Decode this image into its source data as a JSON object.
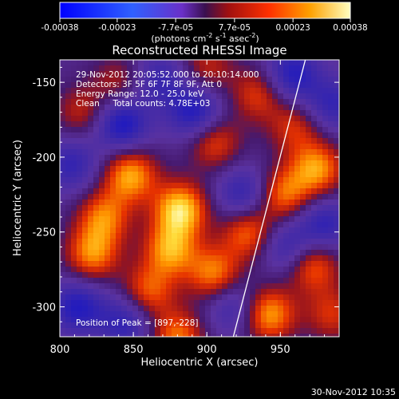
{
  "chart_data": {
    "type": "heatmap",
    "title": "Reconstructed RHESSI Image",
    "xlabel": "Heliocentric X (arcsec)",
    "ylabel": "Heliocentric Y (arcsec)",
    "xlim": [
      800,
      990
    ],
    "ylim": [
      -320,
      -135
    ],
    "x_ticks": [
      800,
      850,
      900,
      950
    ],
    "y_ticks": [
      -150,
      -200,
      -250,
      -300
    ],
    "colorbar": {
      "range": [
        -0.00038,
        0.00038
      ],
      "tick_labels": [
        "-0.00038",
        "-0.00023",
        "-7.7e-05",
        "7.7e-05",
        "0.00023",
        "0.00038"
      ],
      "tick_values": [
        -0.00038,
        -0.00023,
        -7.7e-05,
        7.7e-05,
        0.00023,
        0.00038
      ],
      "units_base": "(photons cm",
      "units_exp1": "-2",
      "units_mid": " s",
      "units_exp2": "-1",
      "units_mid2": " asec",
      "units_exp3": "-2",
      "units_end": ")"
    },
    "annotations": [
      "29-Nov-2012 20:05:52.000 to 20:10:14.000",
      "Detectors: 3F 5F 6F 7F 8F 9F, Att 0",
      "Energy Range: 12.0 - 25.0 keV",
      "Clean     Total counts: 4.78E+03"
    ],
    "peak_label": "Position of Peak = [897,-228]",
    "limb_line": {
      "x": [
        918,
        967
      ],
      "y": [
        -320,
        -135
      ]
    },
    "bright_regions": [
      {
        "x": 882,
        "y": -235,
        "rel": 1.0
      },
      {
        "x": 848,
        "y": -212,
        "rel": 0.85
      },
      {
        "x": 875,
        "y": -262,
        "rel": 0.8
      },
      {
        "x": 830,
        "y": -240,
        "rel": 0.7
      },
      {
        "x": 822,
        "y": -265,
        "rel": 0.75
      },
      {
        "x": 860,
        "y": -290,
        "rel": 0.65
      },
      {
        "x": 905,
        "y": -278,
        "rel": 0.75
      },
      {
        "x": 928,
        "y": -250,
        "rel": 0.7
      },
      {
        "x": 952,
        "y": -225,
        "rel": 0.7
      },
      {
        "x": 975,
        "y": -208,
        "rel": 0.8
      },
      {
        "x": 972,
        "y": -272,
        "rel": 0.7
      },
      {
        "x": 942,
        "y": -305,
        "rel": 0.85
      },
      {
        "x": 880,
        "y": -320,
        "rel": 0.7
      },
      {
        "x": 935,
        "y": -158,
        "rel": 0.55
      },
      {
        "x": 905,
        "y": -190,
        "rel": 0.6
      },
      {
        "x": 815,
        "y": -170,
        "rel": 0.45
      },
      {
        "x": 840,
        "y": -150,
        "rel": 0.4
      },
      {
        "x": 900,
        "y": -140,
        "rel": 0.45
      },
      {
        "x": 960,
        "y": -180,
        "rel": 0.5
      },
      {
        "x": 985,
        "y": -305,
        "rel": 0.5
      }
    ],
    "dark_regions": [
      {
        "x": 842,
        "y": -178,
        "rel": -0.8
      },
      {
        "x": 812,
        "y": -300,
        "rel": -0.7
      },
      {
        "x": 925,
        "y": -225,
        "rel": -0.6
      },
      {
        "x": 892,
        "y": -170,
        "rel": -0.75
      },
      {
        "x": 958,
        "y": -145,
        "rel": -0.7
      },
      {
        "x": 955,
        "y": -260,
        "rel": -0.55
      },
      {
        "x": 845,
        "y": -310,
        "rel": -0.6
      },
      {
        "x": 980,
        "y": -245,
        "rel": -0.6
      },
      {
        "x": 918,
        "y": -300,
        "rel": -0.5
      },
      {
        "x": 808,
        "y": -205,
        "rel": -0.55
      },
      {
        "x": 868,
        "y": -148,
        "rel": -0.5
      },
      {
        "x": 985,
        "y": -165,
        "rel": -0.55
      }
    ]
  },
  "footer": {
    "timestamp": "30-Nov-2012 10:35"
  }
}
